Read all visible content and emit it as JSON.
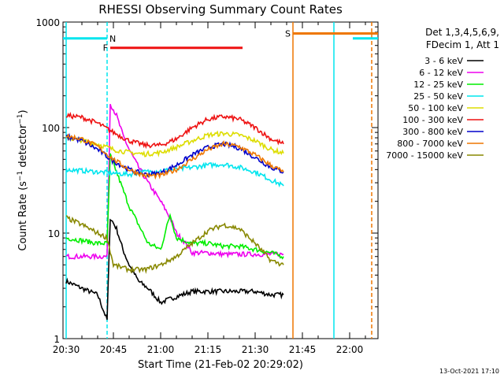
{
  "chart_data": {
    "type": "line",
    "title": "RHESSI Observing Summary Count Rates",
    "xlabel": "Start Time (21-Feb-02 20:29:02)",
    "ylabel_parts": [
      "Count Rate (s",
      "−1",
      " detector",
      "−1",
      ")"
    ],
    "ylabel": "Count Rate (s−1 detector−1)",
    "yscale": "log",
    "ylim": [
      1,
      1000
    ],
    "xlim": [
      "20:29",
      "22:09"
    ],
    "x_tick_labels": [
      "20:30",
      "20:45",
      "21:00",
      "21:15",
      "21:30",
      "21:45",
      "22:00"
    ],
    "y_tick_labels": [
      "1",
      "10",
      "100",
      "1000"
    ],
    "legend_header": [
      "Det 1,3,4,5,6,9,",
      "FDecim 1, Att 1"
    ],
    "legend_position": "right",
    "footer": "13-Oct-2021 17:10",
    "flags": [
      {
        "label": "N",
        "color": "#00e5ee",
        "segments": [
          [
            "20:29",
            "20:43"
          ],
          [
            "22:01",
            "22:09"
          ]
        ],
        "level": 700
      },
      {
        "label": "F",
        "color": "#ee1111",
        "segments": [
          [
            "20:44",
            "21:26"
          ]
        ],
        "level": 570
      },
      {
        "label": "S",
        "color": "#ee7700",
        "segments": [
          [
            "21:42",
            "22:09"
          ]
        ],
        "level": 780
      }
    ],
    "vertical_markers": [
      {
        "time": "20:30",
        "color": "#00e5ee",
        "style": "solid"
      },
      {
        "time": "20:43",
        "color": "#00e5ee",
        "style": "dashed"
      },
      {
        "time": "21:42",
        "color": "#ee7700",
        "style": "solid"
      },
      {
        "time": "21:55",
        "color": "#00e5ee",
        "style": "solid"
      },
      {
        "time": "22:07",
        "color": "#ee7700",
        "style": "dashed"
      }
    ],
    "series": [
      {
        "name": "3 - 6 keV",
        "color": "#000000",
        "x": [
          "20:30",
          "20:35",
          "20:40",
          "20:43",
          "20:44",
          "20:46",
          "20:48",
          "20:50",
          "20:53",
          "20:56",
          "21:00",
          "21:05",
          "21:10",
          "21:15",
          "21:20",
          "21:25",
          "21:30",
          "21:35",
          "21:39"
        ],
        "y": [
          3.5,
          3.0,
          2.6,
          1.5,
          14,
          11,
          7,
          5,
          3.5,
          3.0,
          2.2,
          2.5,
          2.8,
          2.8,
          2.8,
          2.8,
          2.8,
          2.6,
          2.6
        ]
      },
      {
        "name": "6 - 12 keV",
        "color": "#ee00ee",
        "x": [
          "20:30",
          "20:35",
          "20:40",
          "20:43",
          "20:44",
          "20:46",
          "20:48",
          "20:50",
          "20:53",
          "20:56",
          "21:00",
          "21:03",
          "21:05",
          "21:08",
          "21:10",
          "21:15",
          "21:20",
          "21:25",
          "21:30",
          "21:35",
          "21:39"
        ],
        "y": [
          6,
          6,
          6,
          6,
          170,
          130,
          85,
          62,
          42,
          30,
          20,
          14,
          10,
          8,
          6.5,
          6.5,
          6.3,
          6.3,
          6.3,
          6.3,
          6.3
        ]
      },
      {
        "name": "12 - 25 keV",
        "color": "#00ee00",
        "x": [
          "20:30",
          "20:35",
          "20:40",
          "20:43",
          "20:44",
          "20:46",
          "20:48",
          "20:50",
          "20:53",
          "20:56",
          "21:00",
          "21:03",
          "21:05",
          "21:10",
          "21:15",
          "21:20",
          "21:25",
          "21:30",
          "21:35",
          "21:39"
        ],
        "y": [
          9,
          8.5,
          8,
          8,
          55,
          38,
          26,
          18,
          12,
          8,
          7,
          15,
          9,
          8,
          8,
          7.5,
          7.5,
          7,
          6.5,
          6
        ]
      },
      {
        "name": "25 - 50 keV",
        "color": "#00e5ee",
        "x": [
          "20:30",
          "20:35",
          "20:40",
          "20:45",
          "20:50",
          "20:55",
          "21:00",
          "21:05",
          "21:10",
          "21:15",
          "21:20",
          "21:25",
          "21:30",
          "21:35",
          "21:39"
        ],
        "y": [
          40,
          39,
          38,
          37,
          36,
          38,
          39,
          40,
          42,
          44,
          45,
          42,
          38,
          32,
          28
        ]
      },
      {
        "name": "50 - 100 keV",
        "color": "#dddd00",
        "x": [
          "20:30",
          "20:35",
          "20:40",
          "20:45",
          "20:50",
          "20:55",
          "21:00",
          "21:05",
          "21:10",
          "21:15",
          "21:20",
          "21:25",
          "21:30",
          "21:35",
          "21:39"
        ],
        "y": [
          80,
          76,
          70,
          62,
          58,
          56,
          58,
          65,
          75,
          85,
          88,
          85,
          75,
          62,
          57
        ]
      },
      {
        "name": "100 - 300 keV",
        "color": "#ee1111",
        "x": [
          "20:30",
          "20:35",
          "20:40",
          "20:45",
          "20:50",
          "20:55",
          "21:00",
          "21:05",
          "21:10",
          "21:15",
          "21:20",
          "21:25",
          "21:30",
          "21:35",
          "21:39"
        ],
        "y": [
          130,
          125,
          110,
          90,
          75,
          68,
          68,
          78,
          100,
          120,
          127,
          120,
          100,
          78,
          70
        ]
      },
      {
        "name": "300 - 800 keV",
        "color": "#0000cc",
        "x": [
          "20:30",
          "20:35",
          "20:40",
          "20:45",
          "20:50",
          "20:55",
          "21:00",
          "21:05",
          "21:10",
          "21:15",
          "21:20",
          "21:25",
          "21:30",
          "21:35",
          "21:39"
        ],
        "y": [
          82,
          75,
          62,
          48,
          40,
          36,
          37,
          44,
          55,
          65,
          70,
          64,
          52,
          42,
          38
        ]
      },
      {
        "name": "800 - 7000 keV",
        "color": "#ee7700",
        "x": [
          "20:30",
          "20:35",
          "20:40",
          "20:45",
          "20:50",
          "20:55",
          "21:00",
          "21:05",
          "21:10",
          "21:15",
          "21:20",
          "21:25",
          "21:30",
          "21:35",
          "21:39"
        ],
        "y": [
          83,
          78,
          66,
          50,
          40,
          35,
          35,
          40,
          50,
          62,
          70,
          66,
          55,
          44,
          38
        ]
      },
      {
        "name": "7000 - 15000 keV",
        "color": "#888800",
        "x": [
          "20:30",
          "20:35",
          "20:40",
          "20:43",
          "20:45",
          "20:50",
          "20:55",
          "21:00",
          "21:05",
          "21:10",
          "21:15",
          "21:20",
          "21:25",
          "21:30",
          "21:35",
          "21:39"
        ],
        "y": [
          14,
          12,
          10,
          9,
          5,
          4.5,
          4.5,
          5,
          6,
          8,
          10.5,
          12,
          11,
          8,
          5.5,
          5
        ]
      }
    ]
  }
}
